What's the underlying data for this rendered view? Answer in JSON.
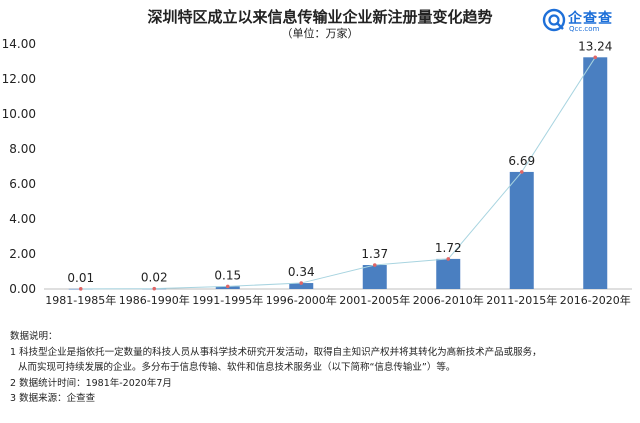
{
  "header": {
    "title": "深圳特区成立以来信息传输业企业新注册量变化趋势",
    "unit": "（单位：万家）"
  },
  "logo": {
    "name": "企查查",
    "domain": "Qcc.com"
  },
  "chart_data": {
    "type": "bar",
    "categories": [
      "1981-1985年",
      "1986-1990年",
      "1991-1995年",
      "1996-2000年",
      "2001-2005年",
      "2006-2010年",
      "2011-2015年",
      "2016-2020年"
    ],
    "values": [
      0.01,
      0.02,
      0.15,
      0.34,
      1.37,
      1.72,
      6.69,
      13.24
    ],
    "value_labels": [
      "0.01",
      "0.02",
      "0.15",
      "0.34",
      "1.37",
      "1.72",
      "6.69",
      "13.24"
    ],
    "yticks": [
      "0.00",
      "2.00",
      "4.00",
      "6.00",
      "8.00",
      "10.00",
      "12.00",
      "14.00"
    ],
    "ylim": [
      0,
      14
    ],
    "trend_line": true,
    "grid": false,
    "colors": {
      "bar": "#4a7fc1",
      "line": "#a8d4e0",
      "marker": "#e06666"
    }
  },
  "notes": {
    "heading": "数据说明：",
    "item1_line1": "1 科技型企业是指依托一定数量的科技人员从事科学技术研究开发活动，取得自主知识产权并将其转化为高新技术产品或服务，",
    "item1_line2": "从而实现可持续发展的企业。多分布于信息传输、软件和信息技术服务业（以下简称“信息传输业”）等。",
    "item2": "2 数据统计时间：1981年-2020年7月",
    "item3": "3 数据来源：企查查"
  }
}
